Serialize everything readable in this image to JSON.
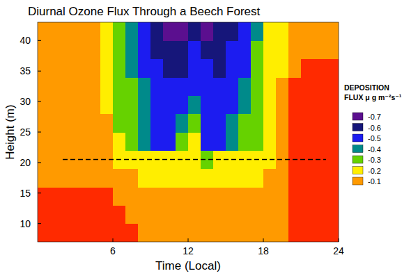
{
  "chart_data": {
    "type": "heatmap",
    "title": "Diurnal Ozone Flux Through a Beech Forest",
    "x_label": "Time (Local)",
    "y_label": "Height (m)",
    "xlim": [
      0,
      24
    ],
    "ylim": [
      7,
      43
    ],
    "xticks": [
      6,
      12,
      18,
      24
    ],
    "yticks": [
      10,
      15,
      20,
      25,
      30,
      35,
      40
    ],
    "color": "#ff2a00",
    "x": [
      0.5,
      1.5,
      2.5,
      3.5,
      4.5,
      5.5,
      6.5,
      7.5,
      8.5,
      9.5,
      10.5,
      11.5,
      12.5,
      13.5,
      14.5,
      15.5,
      16.5,
      17.5,
      18.5,
      19.5,
      20.5,
      21.5,
      22.5,
      23.5
    ],
    "y": [
      8.5,
      11.5,
      14.5,
      17.5,
      20.5,
      23.5,
      26.5,
      29.5,
      32.5,
      35.5,
      38.5,
      41.5
    ],
    "z": [
      [
        -0.02,
        -0.02,
        -0.02,
        -0.02,
        -0.02,
        -0.02,
        -0.02,
        -0.04,
        -0.08,
        -0.1,
        -0.1,
        -0.1,
        -0.1,
        -0.1,
        -0.1,
        -0.1,
        -0.1,
        -0.1,
        -0.1,
        -0.08,
        -0.02,
        -0.02,
        -0.02,
        -0.02
      ],
      [
        -0.02,
        -0.02,
        -0.02,
        -0.02,
        -0.02,
        -0.02,
        -0.04,
        -0.08,
        -0.1,
        -0.1,
        -0.1,
        -0.1,
        -0.1,
        -0.1,
        -0.1,
        -0.1,
        -0.1,
        -0.1,
        -0.1,
        -0.1,
        -0.02,
        -0.02,
        -0.02,
        -0.02
      ],
      [
        -0.03,
        -0.03,
        -0.03,
        -0.03,
        -0.03,
        -0.03,
        -0.08,
        -0.1,
        -0.1,
        -0.1,
        -0.1,
        -0.1,
        -0.1,
        -0.1,
        -0.1,
        -0.1,
        -0.1,
        -0.1,
        -0.1,
        -0.1,
        -0.03,
        -0.02,
        -0.02,
        -0.02
      ],
      [
        -0.1,
        -0.1,
        -0.1,
        -0.1,
        -0.1,
        -0.1,
        -0.1,
        -0.1,
        -0.2,
        -0.2,
        -0.2,
        -0.2,
        -0.2,
        -0.2,
        -0.2,
        -0.2,
        -0.2,
        -0.2,
        -0.1,
        -0.1,
        -0.03,
        -0.02,
        -0.02,
        -0.02
      ],
      [
        -0.1,
        -0.1,
        -0.1,
        -0.1,
        -0.1,
        -0.1,
        -0.2,
        -0.2,
        -0.2,
        -0.2,
        -0.2,
        -0.2,
        -0.2,
        -0.3,
        -0.2,
        -0.2,
        -0.2,
        -0.2,
        -0.2,
        -0.1,
        -0.03,
        -0.02,
        -0.02,
        -0.02
      ],
      [
        -0.1,
        -0.1,
        -0.1,
        -0.1,
        -0.1,
        -0.1,
        -0.2,
        -0.3,
        -0.4,
        -0.5,
        -0.5,
        -0.3,
        -0.2,
        -0.5,
        -0.5,
        -0.4,
        -0.3,
        -0.3,
        -0.2,
        -0.1,
        -0.04,
        -0.02,
        -0.02,
        -0.02
      ],
      [
        -0.1,
        -0.1,
        -0.1,
        -0.1,
        -0.1,
        -0.1,
        -0.3,
        -0.3,
        -0.4,
        -0.5,
        -0.5,
        -0.4,
        -0.3,
        -0.5,
        -0.5,
        -0.4,
        -0.3,
        -0.3,
        -0.2,
        -0.1,
        -0.04,
        -0.02,
        -0.02,
        -0.02
      ],
      [
        -0.1,
        -0.1,
        -0.1,
        -0.1,
        -0.1,
        -0.2,
        -0.3,
        -0.3,
        -0.4,
        -0.5,
        -0.5,
        -0.5,
        -0.4,
        -0.5,
        -0.5,
        -0.5,
        -0.4,
        -0.3,
        -0.2,
        -0.1,
        -0.04,
        -0.03,
        -0.03,
        -0.03
      ],
      [
        -0.1,
        -0.1,
        -0.1,
        -0.1,
        -0.1,
        -0.2,
        -0.3,
        -0.3,
        -0.4,
        -0.5,
        -0.5,
        -0.5,
        -0.5,
        -0.5,
        -0.5,
        -0.5,
        -0.4,
        -0.3,
        -0.2,
        -0.1,
        -0.04,
        -0.03,
        -0.03,
        -0.03
      ],
      [
        -0.1,
        -0.1,
        -0.1,
        -0.1,
        -0.1,
        -0.2,
        -0.3,
        -0.4,
        -0.5,
        -0.5,
        -0.6,
        -0.6,
        -0.5,
        -0.5,
        -0.6,
        -0.5,
        -0.5,
        -0.3,
        -0.2,
        -0.2,
        -0.1,
        -0.04,
        -0.04,
        -0.04
      ],
      [
        -0.1,
        -0.1,
        -0.1,
        -0.1,
        -0.1,
        -0.2,
        -0.3,
        -0.4,
        -0.5,
        -0.6,
        -0.6,
        -0.6,
        -0.5,
        -0.6,
        -0.6,
        -0.5,
        -0.5,
        -0.3,
        -0.2,
        -0.2,
        -0.1,
        -0.1,
        -0.1,
        -0.1
      ],
      [
        -0.1,
        -0.1,
        -0.1,
        -0.1,
        -0.1,
        -0.2,
        -0.3,
        -0.4,
        -0.5,
        -0.6,
        -0.7,
        -0.7,
        -0.6,
        -0.7,
        -0.6,
        -0.6,
        -0.5,
        -0.4,
        -0.2,
        -0.2,
        -0.1,
        -0.1,
        -0.1,
        -0.1
      ]
    ],
    "colorbar": {
      "title": [
        "DEPOSITION",
        "FLUX μ g m⁻²s⁻¹"
      ],
      "ticks": [
        -0.7,
        -0.6,
        -0.5,
        -0.4,
        -0.3,
        -0.2,
        -0.1
      ],
      "colors": [
        "#5b0f8f",
        "#16167a",
        "#1c1cf0",
        "#008a8a",
        "#66d200",
        "#ffee00",
        "#ff9a00"
      ]
    },
    "reference_line": {
      "y": 20.5,
      "xlim": [
        2,
        23
      ],
      "line_style": "dashed"
    }
  }
}
